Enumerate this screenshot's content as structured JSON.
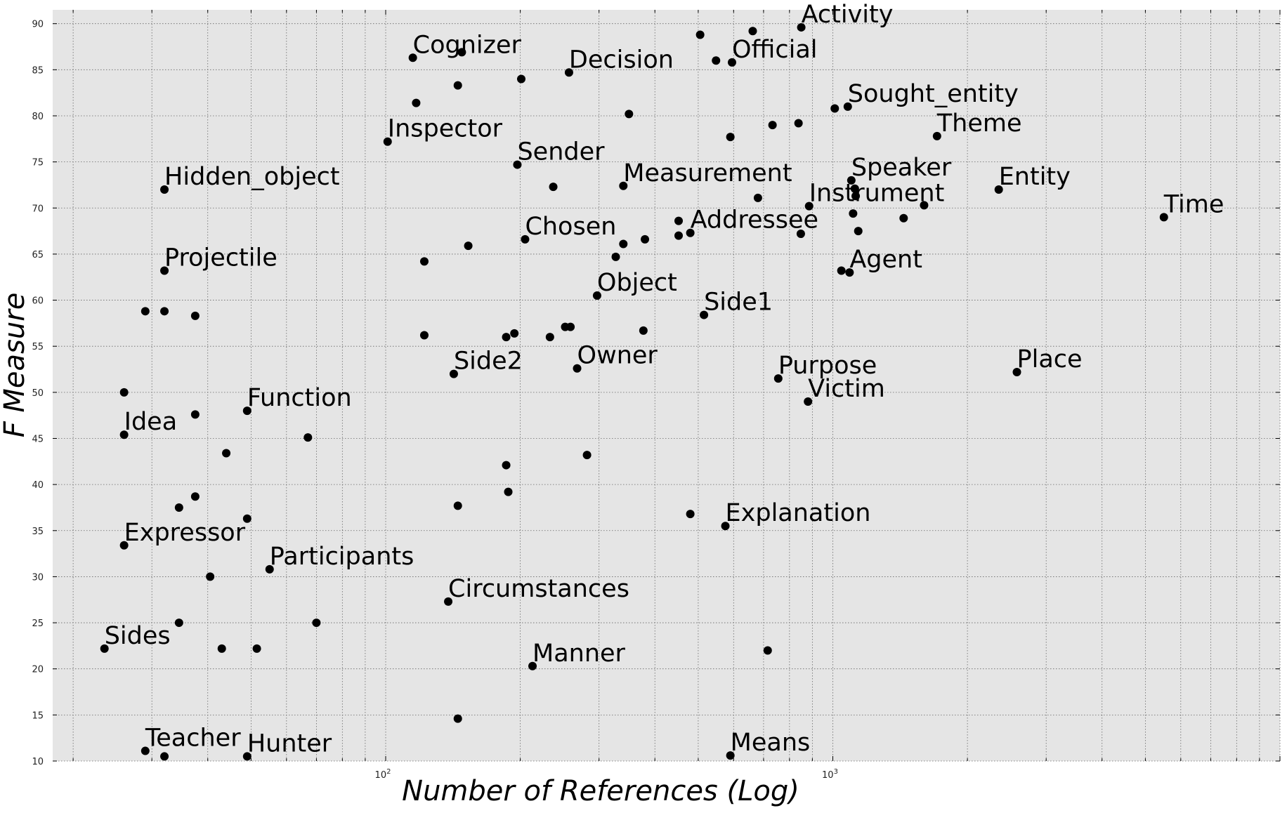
{
  "chart_data": {
    "type": "scatter",
    "title": "",
    "xlabel": "Number of References (Log)",
    "ylabel": "F Measure",
    "xscale": "log",
    "xlim": [
      18,
      10000
    ],
    "ylim": [
      10,
      91.5
    ],
    "x_ticks": [
      {
        "value": 100,
        "label": "10^2"
      },
      {
        "value": 1000,
        "label": "10^3"
      }
    ],
    "y_ticks": [
      10,
      15,
      20,
      25,
      30,
      35,
      40,
      45,
      50,
      55,
      60,
      65,
      70,
      75,
      80,
      85,
      90
    ],
    "grid": true,
    "background": "#e5e5e5",
    "marker_color": "#000000",
    "points": [
      {
        "x": 850,
        "y": 89.6,
        "label": "Activity"
      },
      {
        "x": 115,
        "y": 86.3,
        "label": "Cognizer"
      },
      {
        "x": 257,
        "y": 84.7,
        "label": "Decision"
      },
      {
        "x": 595,
        "y": 85.8,
        "label": "Official"
      },
      {
        "x": 1080,
        "y": 81.0,
        "label": "Sought_entity"
      },
      {
        "x": 101,
        "y": 77.2,
        "label": "Inspector"
      },
      {
        "x": 1710,
        "y": 77.8,
        "label": "Theme"
      },
      {
        "x": 197,
        "y": 74.7,
        "label": "Sender"
      },
      {
        "x": 340,
        "y": 72.4,
        "label": "Measurement"
      },
      {
        "x": 1100,
        "y": 73.0,
        "label": "Speaker"
      },
      {
        "x": 2350,
        "y": 72.0,
        "label": "Entity"
      },
      {
        "x": 32,
        "y": 72.0,
        "label": "Hidden_object"
      },
      {
        "x": 885,
        "y": 70.2,
        "label": "Instrument"
      },
      {
        "x": 5500,
        "y": 69.0,
        "label": "Time"
      },
      {
        "x": 205,
        "y": 66.6,
        "label": "Chosen"
      },
      {
        "x": 480,
        "y": 67.3,
        "label": "Addressee"
      },
      {
        "x": 32,
        "y": 63.2,
        "label": "Projectile"
      },
      {
        "x": 1090,
        "y": 63.0,
        "label": "Agent"
      },
      {
        "x": 297,
        "y": 60.5,
        "label": "Object"
      },
      {
        "x": 515,
        "y": 58.4,
        "label": "Side1"
      },
      {
        "x": 142,
        "y": 52.0,
        "label": "Side2"
      },
      {
        "x": 268,
        "y": 52.6,
        "label": "Owner"
      },
      {
        "x": 755,
        "y": 51.5,
        "label": "Purpose"
      },
      {
        "x": 2580,
        "y": 52.2,
        "label": "Place"
      },
      {
        "x": 880,
        "y": 49.0,
        "label": "Victim"
      },
      {
        "x": 49,
        "y": 48.0,
        "label": "Function"
      },
      {
        "x": 26,
        "y": 45.4,
        "label": "Idea"
      },
      {
        "x": 575,
        "y": 35.5,
        "label": "Explanation"
      },
      {
        "x": 26,
        "y": 33.4,
        "label": "Expressor"
      },
      {
        "x": 55,
        "y": 30.8,
        "label": "Participants"
      },
      {
        "x": 138,
        "y": 27.3,
        "label": "Circumstances"
      },
      {
        "x": 23.5,
        "y": 22.2,
        "label": "Sides"
      },
      {
        "x": 213,
        "y": 20.3,
        "label": "Manner"
      },
      {
        "x": 29,
        "y": 11.1,
        "label": "Teacher"
      },
      {
        "x": 49,
        "y": 10.5,
        "label": "Hunter"
      },
      {
        "x": 590,
        "y": 10.6,
        "label": "Means"
      },
      {
        "x": 505,
        "y": 88.8
      },
      {
        "x": 662,
        "y": 89.2
      },
      {
        "x": 148,
        "y": 86.9
      },
      {
        "x": 548,
        "y": 86.0
      },
      {
        "x": 201,
        "y": 84.0
      },
      {
        "x": 145,
        "y": 83.3
      },
      {
        "x": 117,
        "y": 81.4
      },
      {
        "x": 350,
        "y": 80.2
      },
      {
        "x": 1010,
        "y": 80.8
      },
      {
        "x": 838,
        "y": 79.2
      },
      {
        "x": 733,
        "y": 79.0
      },
      {
        "x": 590,
        "y": 77.7
      },
      {
        "x": 237,
        "y": 72.3
      },
      {
        "x": 1120,
        "y": 72.1
      },
      {
        "x": 1125,
        "y": 71.3
      },
      {
        "x": 680,
        "y": 71.1
      },
      {
        "x": 1600,
        "y": 70.3
      },
      {
        "x": 1110,
        "y": 69.4
      },
      {
        "x": 1440,
        "y": 68.9
      },
      {
        "x": 452,
        "y": 68.6
      },
      {
        "x": 452,
        "y": 67.0
      },
      {
        "x": 848,
        "y": 67.2
      },
      {
        "x": 1140,
        "y": 67.5
      },
      {
        "x": 380,
        "y": 66.6
      },
      {
        "x": 340,
        "y": 66.1
      },
      {
        "x": 153,
        "y": 65.9
      },
      {
        "x": 327,
        "y": 64.7
      },
      {
        "x": 122,
        "y": 64.2
      },
      {
        "x": 1045,
        "y": 63.2
      },
      {
        "x": 29,
        "y": 58.8
      },
      {
        "x": 32,
        "y": 58.8
      },
      {
        "x": 37.5,
        "y": 58.3
      },
      {
        "x": 122,
        "y": 56.2
      },
      {
        "x": 186,
        "y": 56.0
      },
      {
        "x": 194,
        "y": 56.4
      },
      {
        "x": 233,
        "y": 56.0
      },
      {
        "x": 252,
        "y": 57.1
      },
      {
        "x": 259,
        "y": 57.1
      },
      {
        "x": 377,
        "y": 56.7
      },
      {
        "x": 26,
        "y": 50.0
      },
      {
        "x": 37.5,
        "y": 47.6
      },
      {
        "x": 67,
        "y": 45.1
      },
      {
        "x": 44,
        "y": 43.4
      },
      {
        "x": 282,
        "y": 43.2
      },
      {
        "x": 186,
        "y": 42.1
      },
      {
        "x": 37.5,
        "y": 38.7
      },
      {
        "x": 188,
        "y": 39.2
      },
      {
        "x": 34.5,
        "y": 37.5
      },
      {
        "x": 145,
        "y": 37.7
      },
      {
        "x": 49,
        "y": 36.3
      },
      {
        "x": 480,
        "y": 36.8
      },
      {
        "x": 40.5,
        "y": 30.0
      },
      {
        "x": 34.5,
        "y": 25.0
      },
      {
        "x": 70,
        "y": 25.0
      },
      {
        "x": 43,
        "y": 22.2
      },
      {
        "x": 51.5,
        "y": 22.2
      },
      {
        "x": 715,
        "y": 22.0
      },
      {
        "x": 145,
        "y": 14.6
      },
      {
        "x": 32,
        "y": 10.5
      }
    ]
  }
}
